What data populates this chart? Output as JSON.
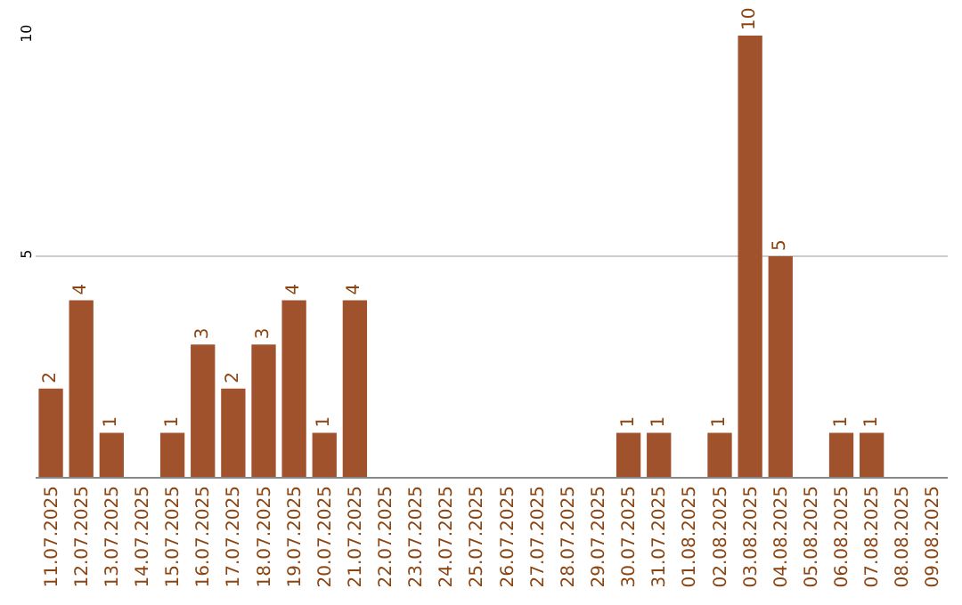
{
  "chart_data": {
    "type": "bar",
    "categories": [
      "11.07.2025",
      "12.07.2025",
      "13.07.2025",
      "14.07.2025",
      "15.07.2025",
      "16.07.2025",
      "17.07.2025",
      "18.07.2025",
      "19.07.2025",
      "20.07.2025",
      "21.07.2025",
      "22.07.2025",
      "23.07.2025",
      "24.07.2025",
      "25.07.2025",
      "26.07.2025",
      "27.07.2025",
      "28.07.2025",
      "29.07.2025",
      "30.07.2025",
      "31.07.2025",
      "01.08.2025",
      "02.08.2025",
      "03.08.2025",
      "04.08.2025",
      "05.08.2025",
      "06.08.2025",
      "07.08.2025",
      "08.08.2025",
      "09.08.2025"
    ],
    "values": [
      2,
      4,
      1,
      0,
      1,
      3,
      2,
      3,
      4,
      1,
      4,
      0,
      0,
      0,
      0,
      0,
      0,
      0,
      0,
      1,
      1,
      0,
      1,
      10,
      5,
      0,
      1,
      1,
      0,
      0
    ],
    "value_labels": [
      "2",
      "4",
      "1",
      null,
      "1",
      "3",
      "2",
      "3",
      "4",
      "1",
      "4",
      null,
      null,
      null,
      null,
      null,
      null,
      null,
      null,
      "1",
      "1",
      null,
      "1",
      "10",
      "5",
      null,
      "1",
      "1",
      null,
      null
    ],
    "color": "#a0522d",
    "ylim": [
      0,
      10
    ],
    "yticks": [
      5,
      10
    ],
    "grid": "y",
    "legend": false
  }
}
